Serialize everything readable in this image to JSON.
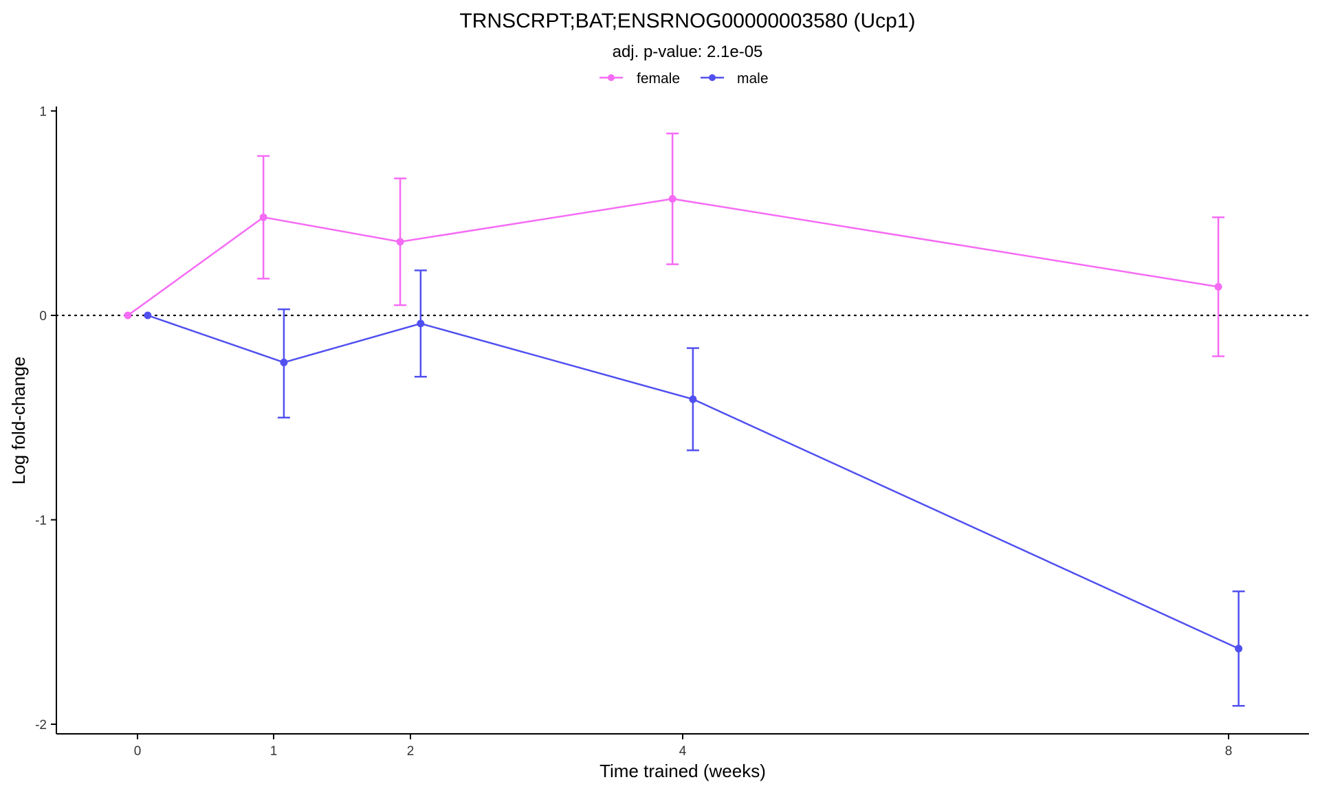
{
  "chart_data": {
    "type": "line",
    "title": "TRNSCRPT;BAT;ENSRNOG00000003580 (Ucp1)",
    "subtitle": "adj. p-value: 2.1e-05",
    "xlabel": "Time trained (weeks)",
    "ylabel": "Log fold-change",
    "x_ticks": [
      0,
      1,
      2,
      4,
      8
    ],
    "x_tick_labels": [
      "0",
      "1",
      "2",
      "4",
      "8"
    ],
    "y_ticks": [
      1,
      0,
      -1,
      -2
    ],
    "y_tick_labels": [
      "1",
      "0",
      "-1",
      "-2"
    ],
    "xlim": [
      -0.6,
      8.6
    ],
    "ylim": [
      -2.05,
      1.05
    ],
    "reference_line": {
      "y": 0,
      "style": "dotted"
    },
    "legend_position": "top",
    "grid": false,
    "series": [
      {
        "name": "female",
        "color": "#F56BF5",
        "x": [
          0,
          1,
          2,
          4,
          8
        ],
        "y": [
          0.0,
          0.48,
          0.36,
          0.57,
          0.14
        ],
        "lower": [
          0.0,
          0.18,
          0.05,
          0.25,
          -0.2
        ],
        "upper": [
          0.0,
          0.78,
          0.67,
          0.89,
          0.48
        ],
        "dodge": -0.075
      },
      {
        "name": "male",
        "color": "#5050F0",
        "x": [
          0,
          1,
          2,
          4,
          8
        ],
        "y": [
          0.0,
          -0.23,
          -0.04,
          -0.41,
          -1.63
        ],
        "lower": [
          0.0,
          -0.5,
          -0.3,
          -0.66,
          -1.91
        ],
        "upper": [
          0.0,
          0.03,
          0.22,
          -0.16,
          -1.35
        ],
        "dodge": 0.075
      }
    ]
  }
}
